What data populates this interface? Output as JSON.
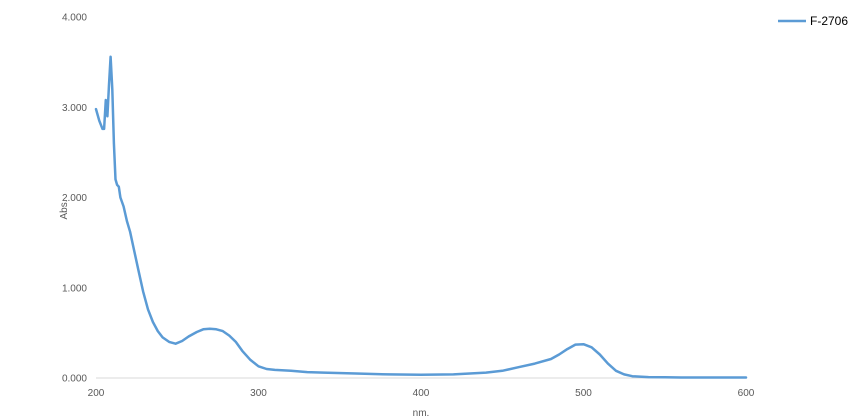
{
  "chart_data": {
    "type": "line",
    "title": "",
    "xlabel": "nm.",
    "ylabel": "Abs.",
    "xlim": [
      200,
      600
    ],
    "ylim": [
      0,
      4
    ],
    "x_ticks": [
      "200",
      "300",
      "400",
      "500",
      "600"
    ],
    "y_ticks": [
      "0.000",
      "1.000",
      "2.000",
      "3.000",
      "4.000"
    ],
    "grid": false,
    "legend_position": "top-right",
    "series": [
      {
        "name": "F-2706",
        "color": "#5B9BD5",
        "x": [
          200,
          202,
          204,
          205,
          206,
          207,
          208,
          209,
          210,
          211,
          212,
          213,
          214,
          215,
          217,
          219,
          221,
          223,
          226,
          229,
          232,
          235,
          238,
          241,
          245,
          249,
          253,
          257,
          262,
          266,
          270,
          274,
          278,
          282,
          286,
          290,
          295,
          300,
          305,
          310,
          320,
          330,
          340,
          360,
          380,
          400,
          420,
          440,
          450,
          460,
          470,
          480,
          485,
          490,
          495,
          500,
          505,
          510,
          515,
          520,
          525,
          530,
          540,
          550,
          560,
          580,
          600
        ],
        "values": [
          2.98,
          2.85,
          2.76,
          2.76,
          3.08,
          2.9,
          3.25,
          3.56,
          3.2,
          2.6,
          2.2,
          2.14,
          2.12,
          2.0,
          1.9,
          1.74,
          1.62,
          1.45,
          1.2,
          0.96,
          0.76,
          0.62,
          0.52,
          0.45,
          0.4,
          0.38,
          0.41,
          0.46,
          0.51,
          0.54,
          0.545,
          0.54,
          0.52,
          0.47,
          0.4,
          0.3,
          0.2,
          0.13,
          0.1,
          0.09,
          0.08,
          0.065,
          0.06,
          0.05,
          0.04,
          0.035,
          0.04,
          0.06,
          0.08,
          0.12,
          0.16,
          0.21,
          0.26,
          0.32,
          0.37,
          0.375,
          0.34,
          0.26,
          0.16,
          0.08,
          0.04,
          0.02,
          0.01,
          0.008,
          0.005,
          0.005,
          0.005
        ]
      }
    ]
  }
}
